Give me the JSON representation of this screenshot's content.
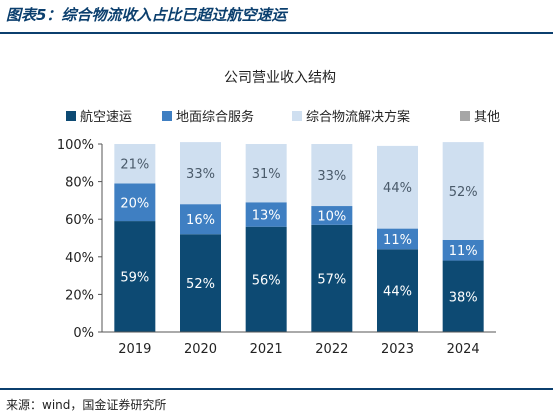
{
  "figure_title": "图表5：综合物流收入占比已超过航空速运",
  "source_note": "来源：wind，国金证券研究所",
  "colors": {
    "frame": "#0b3f6e",
    "series": [
      "#0d4a73",
      "#3f7fc2",
      "#cfdff0",
      "#a6a6a6"
    ]
  },
  "chart_data": {
    "type": "bar",
    "stacked": true,
    "title": "公司营业收入结构",
    "xlabel": "",
    "ylabel": "",
    "ylim": [
      0,
      100
    ],
    "y_ticks": [
      "0%",
      "20%",
      "40%",
      "60%",
      "80%",
      "100%"
    ],
    "categories": [
      "2019",
      "2020",
      "2021",
      "2022",
      "2023",
      "2024"
    ],
    "legend_position": "top",
    "grid": false,
    "series": [
      {
        "name": "航空速运",
        "values": [
          59,
          52,
          56,
          57,
          44,
          38
        ],
        "labels": [
          "59%",
          "52%",
          "56%",
          "57%",
          "44%",
          "38%"
        ]
      },
      {
        "name": "地面综合服务",
        "values": [
          20,
          16,
          13,
          10,
          11,
          11
        ],
        "labels": [
          "20%",
          "16%",
          "13%",
          "10%",
          "11%",
          "11%"
        ]
      },
      {
        "name": "综合物流解决方案",
        "values": [
          21,
          33,
          31,
          33,
          44,
          52
        ],
        "labels": [
          "21%",
          "33%",
          "31%",
          "33%",
          "44%",
          "52%"
        ]
      },
      {
        "name": "其他",
        "values": [
          0,
          0,
          0,
          0,
          0,
          0
        ],
        "labels": [
          "",
          "",
          "",
          "",
          "",
          ""
        ]
      }
    ]
  }
}
